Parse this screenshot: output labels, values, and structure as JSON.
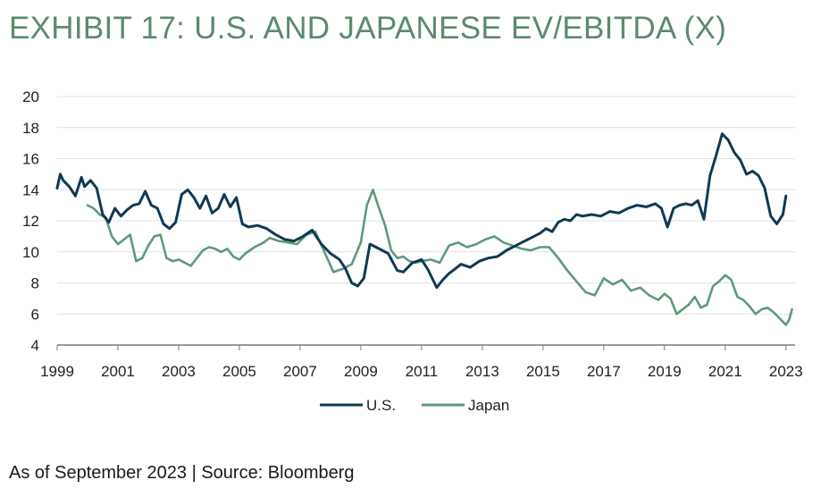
{
  "title": "EXHIBIT 17: U.S. AND JAPANESE EV/EBITDA (X)",
  "source": "As of September 2023 | Source: Bloomberg",
  "colors": {
    "us": "#0f3a54",
    "japan": "#5e9a7a",
    "grid": "#dde3e8",
    "axis": "#7a7a7a"
  },
  "chart_data": {
    "type": "line",
    "title": "EXHIBIT 17: U.S. AND JAPANESE EV/EBITDA (X)",
    "xlabel": "",
    "ylabel": "",
    "xlim": [
      1999,
      2023.3
    ],
    "ylim": [
      4,
      20
    ],
    "y_ticks": [
      "20",
      "18",
      "16",
      "14",
      "12",
      "10",
      "8",
      "6",
      "4"
    ],
    "x_ticks": [
      "1999",
      "2001",
      "2003",
      "2005",
      "2007",
      "2009",
      "2011",
      "2013",
      "2015",
      "2017",
      "2019",
      "2021",
      "2023"
    ],
    "grid": "horizontal",
    "legend_position": "bottom",
    "series": [
      {
        "name": "U.S.",
        "color": "#0f3a54",
        "x": [
          1999.0,
          1999.1,
          1999.2,
          1999.4,
          1999.6,
          1999.8,
          1999.9,
          2000.1,
          2000.3,
          2000.5,
          2000.7,
          2000.9,
          2001.1,
          2001.3,
          2001.5,
          2001.7,
          2001.9,
          2002.1,
          2002.3,
          2002.5,
          2002.7,
          2002.9,
          2003.1,
          2003.3,
          2003.5,
          2003.7,
          2003.9,
          2004.1,
          2004.3,
          2004.5,
          2004.7,
          2004.9,
          2005.1,
          2005.3,
          2005.6,
          2005.9,
          2006.2,
          2006.5,
          2006.8,
          2007.1,
          2007.4,
          2007.7,
          2008.0,
          2008.3,
          2008.5,
          2008.7,
          2008.9,
          2009.1,
          2009.3,
          2009.5,
          2009.7,
          2009.9,
          2010.2,
          2010.4,
          2010.7,
          2011.0,
          2011.2,
          2011.5,
          2011.7,
          2011.9,
          2012.1,
          2012.3,
          2012.6,
          2012.9,
          2013.2,
          2013.5,
          2013.8,
          2014.1,
          2014.3,
          2014.5,
          2014.7,
          2014.9,
          2015.1,
          2015.3,
          2015.5,
          2015.7,
          2015.9,
          2016.1,
          2016.3,
          2016.6,
          2016.9,
          2017.2,
          2017.5,
          2017.8,
          2018.1,
          2018.4,
          2018.7,
          2018.9,
          2019.1,
          2019.3,
          2019.5,
          2019.7,
          2019.9,
          2020.1,
          2020.3,
          2020.5,
          2020.7,
          2020.9,
          2021.1,
          2021.3,
          2021.5,
          2021.7,
          2021.9,
          2022.1,
          2022.3,
          2022.5,
          2022.7,
          2022.9,
          2023.0
        ],
        "values": [
          14.1,
          15.0,
          14.6,
          14.2,
          13.6,
          14.8,
          14.2,
          14.6,
          14.1,
          12.4,
          11.9,
          12.8,
          12.3,
          12.7,
          13.0,
          13.1,
          13.9,
          13.0,
          12.8,
          11.8,
          11.5,
          11.9,
          13.7,
          14.0,
          13.5,
          12.8,
          13.6,
          12.5,
          12.8,
          13.7,
          12.9,
          13.5,
          11.8,
          11.6,
          11.7,
          11.5,
          11.1,
          10.8,
          10.7,
          11.0,
          11.4,
          10.5,
          9.9,
          9.5,
          8.9,
          8.0,
          7.8,
          8.3,
          10.5,
          10.3,
          10.1,
          9.9,
          8.8,
          8.7,
          9.3,
          9.5,
          8.9,
          7.7,
          8.2,
          8.6,
          8.9,
          9.2,
          9.0,
          9.4,
          9.6,
          9.7,
          10.1,
          10.4,
          10.6,
          10.8,
          11.0,
          11.2,
          11.5,
          11.3,
          11.9,
          12.1,
          12.0,
          12.4,
          12.3,
          12.4,
          12.3,
          12.6,
          12.5,
          12.8,
          13.0,
          12.9,
          13.1,
          12.8,
          11.6,
          12.8,
          13.0,
          13.1,
          13.0,
          13.3,
          12.1,
          14.9,
          16.2,
          17.6,
          17.2,
          16.4,
          15.9,
          15.0,
          15.2,
          14.9,
          14.1,
          12.3,
          11.8,
          12.4,
          13.6
        ]
      },
      {
        "name": "Japan",
        "color": "#5e9a7a",
        "x": [
          2000.0,
          2000.2,
          2000.4,
          2000.6,
          2000.8,
          2001.0,
          2001.2,
          2001.4,
          2001.6,
          2001.8,
          2002.0,
          2002.2,
          2002.4,
          2002.6,
          2002.8,
          2003.0,
          2003.2,
          2003.4,
          2003.6,
          2003.8,
          2004.0,
          2004.2,
          2004.4,
          2004.6,
          2004.8,
          2005.0,
          2005.2,
          2005.5,
          2005.8,
          2006.0,
          2006.3,
          2006.6,
          2006.9,
          2007.2,
          2007.5,
          2007.8,
          2008.1,
          2008.4,
          2008.7,
          2009.0,
          2009.2,
          2009.4,
          2009.6,
          2009.8,
          2010.0,
          2010.2,
          2010.4,
          2010.6,
          2010.8,
          2011.0,
          2011.3,
          2011.6,
          2011.9,
          2012.2,
          2012.5,
          2012.8,
          2013.1,
          2013.4,
          2013.7,
          2014.0,
          2014.3,
          2014.6,
          2014.9,
          2015.2,
          2015.5,
          2015.8,
          2016.1,
          2016.4,
          2016.7,
          2017.0,
          2017.3,
          2017.6,
          2017.9,
          2018.2,
          2018.5,
          2018.8,
          2019.0,
          2019.2,
          2019.4,
          2019.6,
          2019.8,
          2020.0,
          2020.2,
          2020.4,
          2020.6,
          2020.8,
          2021.0,
          2021.2,
          2021.4,
          2021.6,
          2021.8,
          2022.0,
          2022.2,
          2022.4,
          2022.6,
          2022.8,
          2023.0,
          2023.1,
          2023.2
        ],
        "values": [
          13.0,
          12.8,
          12.4,
          12.2,
          11.0,
          10.5,
          10.8,
          11.1,
          9.4,
          9.6,
          10.4,
          11.0,
          11.1,
          9.6,
          9.4,
          9.5,
          9.3,
          9.1,
          9.6,
          10.1,
          10.3,
          10.2,
          10.0,
          10.2,
          9.7,
          9.5,
          9.9,
          10.3,
          10.6,
          10.9,
          10.7,
          10.6,
          10.5,
          11.1,
          11.3,
          10.0,
          8.7,
          8.9,
          9.2,
          10.6,
          13.0,
          14.0,
          12.8,
          11.7,
          10.1,
          9.6,
          9.7,
          9.4,
          9.3,
          9.4,
          9.5,
          9.3,
          10.4,
          10.6,
          10.3,
          10.5,
          10.8,
          11.0,
          10.6,
          10.4,
          10.2,
          10.1,
          10.3,
          10.3,
          9.6,
          8.8,
          8.1,
          7.4,
          7.2,
          8.3,
          7.9,
          8.2,
          7.5,
          7.7,
          7.2,
          6.9,
          7.3,
          7.0,
          6.0,
          6.3,
          6.6,
          7.1,
          6.4,
          6.6,
          7.8,
          8.1,
          8.5,
          8.2,
          7.1,
          6.9,
          6.5,
          6.0,
          6.3,
          6.4,
          6.1,
          5.7,
          5.3,
          5.6,
          6.3
        ]
      }
    ]
  }
}
